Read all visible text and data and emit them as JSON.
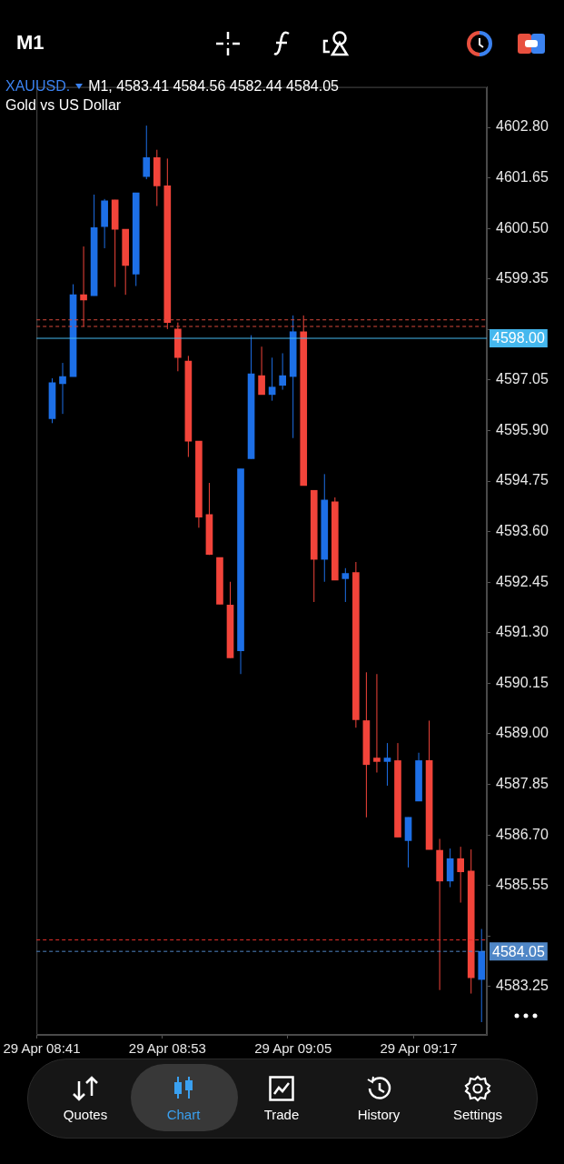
{
  "chart_data": {
    "type": "candlestick",
    "title": "XAUUSD.",
    "subtitle": "Gold vs US Dollar",
    "annotations": [
      "M1, 4583.41 4584.56 4582.44 4584.05",
      "M1",
      "Quotes",
      "Chart",
      "Trade",
      "History",
      "Settings"
    ],
    "categories": [
      "29 Apr 08:41",
      null,
      null,
      null,
      null,
      null,
      null,
      null,
      null,
      null,
      null,
      null,
      "29 Apr 08:53",
      null,
      null,
      null,
      null,
      null,
      null,
      null,
      null,
      null,
      null,
      null,
      "29 Apr 09:05",
      null,
      null,
      null,
      null,
      null,
      null,
      null,
      null,
      null,
      null,
      null,
      "29 Apr 09:17",
      null,
      null,
      null,
      null,
      null,
      null
    ],
    "ohlc": [
      null,
      [
        4596.17,
        4597.09,
        4596.07,
        4596.99
      ],
      [
        4596.97,
        4597.44,
        4596.28,
        4597.13
      ],
      [
        4597.13,
        4599.23,
        4597.13,
        4598.99
      ],
      [
        4598.99,
        4600.09,
        4598.27,
        4598.87
      ],
      [
        4598.97,
        4601.27,
        4598.97,
        4600.52
      ],
      [
        4600.54,
        4601.17,
        4600.05,
        4601.13
      ],
      [
        4601.15,
        4601.15,
        4599.17,
        4600.48
      ],
      [
        4600.48,
        4600.48,
        4598.99,
        4599.66
      ],
      [
        4599.46,
        4601.31,
        4599.19,
        4601.31
      ],
      [
        4601.68,
        4602.84,
        4601.62,
        4602.11
      ],
      [
        4602.11,
        4602.29,
        4601.01,
        4601.47
      ],
      [
        4601.47,
        4602.09,
        4598.21,
        4598.36
      ],
      [
        4598.21,
        4598.36,
        4597.25,
        4597.56
      ],
      [
        4597.48,
        4597.6,
        4595.3,
        4595.66
      ],
      [
        4595.66,
        4595.66,
        4593.69,
        4593.93
      ],
      [
        4593.99,
        4594.71,
        4593.07,
        4593.08
      ],
      [
        4593.01,
        4593.01,
        4591.95,
        4591.95
      ],
      [
        4591.93,
        4592.46,
        4590.73,
        4590.73
      ],
      [
        4590.89,
        4595.03,
        4590.36,
        4595.03
      ],
      [
        4595.26,
        4598.07,
        4595.26,
        4597.19
      ],
      [
        4597.15,
        4597.81,
        4596.72,
        4596.72
      ],
      [
        4596.72,
        4597.56,
        4596.58,
        4596.89
      ],
      [
        4596.93,
        4597.66,
        4596.83,
        4597.15
      ],
      [
        4597.13,
        4598.52,
        4595.73,
        4598.15
      ],
      [
        4598.15,
        4598.52,
        4594.65,
        4594.65
      ],
      [
        4594.54,
        4594.54,
        4592.0,
        4592.97
      ],
      [
        4592.97,
        4594.91,
        4592.46,
        4594.32
      ],
      [
        4594.28,
        4594.38,
        4592.5,
        4592.5
      ],
      [
        4592.53,
        4592.77,
        4592.0,
        4592.65
      ],
      [
        4592.67,
        4592.91,
        4589.14,
        4589.32
      ],
      [
        4589.3,
        4590.4,
        4587.1,
        4588.3
      ],
      [
        4588.45,
        4590.36,
        4588.12,
        4588.37
      ],
      [
        4588.37,
        4588.79,
        4587.82,
        4588.45
      ],
      [
        4588.39,
        4588.79,
        4586.65,
        4586.65
      ],
      [
        4586.57,
        4587.1,
        4585.96,
        4587.1
      ],
      [
        4587.47,
        4588.57,
        4587.47,
        4588.39
      ],
      [
        4588.39,
        4589.3,
        4586.37,
        4586.37
      ],
      [
        4586.35,
        4586.61,
        4583.17,
        4585.65
      ],
      [
        4585.65,
        4586.39,
        4585.51,
        4586.16
      ],
      [
        4586.16,
        4586.43,
        4585.16,
        4585.86
      ],
      [
        4585.88,
        4586.37,
        4583.09,
        4583.45
      ],
      [
        4583.41,
        4584.56,
        4582.44,
        4584.05
      ]
    ],
    "colors": [
      null,
      "#1d6fe6",
      "#1d6fe6",
      "#1d6fe6",
      "#f2443a",
      "#1d6fe6",
      "#1d6fe6",
      "#f2443a",
      "#f2443a",
      "#1d6fe6",
      "#1d6fe6",
      "#f2443a",
      "#f2443a",
      "#f2443a",
      "#f2443a",
      "#f2443a",
      "#f2443a",
      "#f2443a",
      "#f2443a",
      "#1d6fe6",
      "#1d6fe6",
      "#f2443a",
      "#1d6fe6",
      "#1d6fe6",
      "#1d6fe6",
      "#f2443a",
      "#f2443a",
      "#1d6fe6",
      "#f2443a",
      "#1d6fe6",
      "#f2443a",
      "#f2443a",
      "#f2443a",
      "#1d6fe6",
      "#f2443a",
      "#1d6fe6",
      "#1d6fe6",
      "#f2443a",
      "#f2443a",
      "#1d6fe6",
      "#f2443a",
      "#f2443a",
      "#1d6fe6"
    ],
    "ylim": [
      4582.15,
      4603.72
    ],
    "yticks": [
      {
        "value": 4602.8,
        "label": "4602.80"
      },
      {
        "value": 4601.65,
        "label": "4601.65"
      },
      {
        "value": 4600.5,
        "label": "4600.50"
      },
      {
        "value": 4599.35,
        "label": "4599.35"
      },
      {
        "value": 4598.2,
        "label": null
      },
      {
        "value": 4597.05,
        "label": "4597.05"
      },
      {
        "value": 4595.9,
        "label": "4595.90"
      },
      {
        "value": 4594.75,
        "label": "4594.75"
      },
      {
        "value": 4593.6,
        "label": "4593.60"
      },
      {
        "value": 4592.45,
        "label": "4592.45"
      },
      {
        "value": 4591.3,
        "label": "4591.30"
      },
      {
        "value": 4590.15,
        "label": "4590.15"
      },
      {
        "value": 4589.0,
        "label": "4589.00"
      },
      {
        "value": 4587.85,
        "label": "4587.85"
      },
      {
        "value": 4586.7,
        "label": "4586.70"
      },
      {
        "value": 4585.55,
        "label": "4585.55"
      },
      {
        "value": 4584.4,
        "label": null
      },
      {
        "value": 4583.25,
        "label": "4583.25"
      }
    ],
    "ref_lines": [
      {
        "axis": "y",
        "value": 4598.42,
        "label": null,
        "color": "#d9483b",
        "line_style": "dashed"
      },
      {
        "axis": "y",
        "value": 4598.27,
        "label": null,
        "color": "#d9483b",
        "line_style": "dashed"
      },
      {
        "axis": "y",
        "value": 4598.0,
        "label": "4598.00",
        "color": "#45b8ee",
        "line_style": "solid"
      },
      {
        "axis": "y",
        "value": 4584.31,
        "label": null,
        "color": "#e8302a",
        "line_style": "dashed"
      },
      {
        "axis": "y",
        "value": 4584.05,
        "label": "4584.05",
        "color": "#4f86c6",
        "line_style": "dashed"
      }
    ]
  }
}
